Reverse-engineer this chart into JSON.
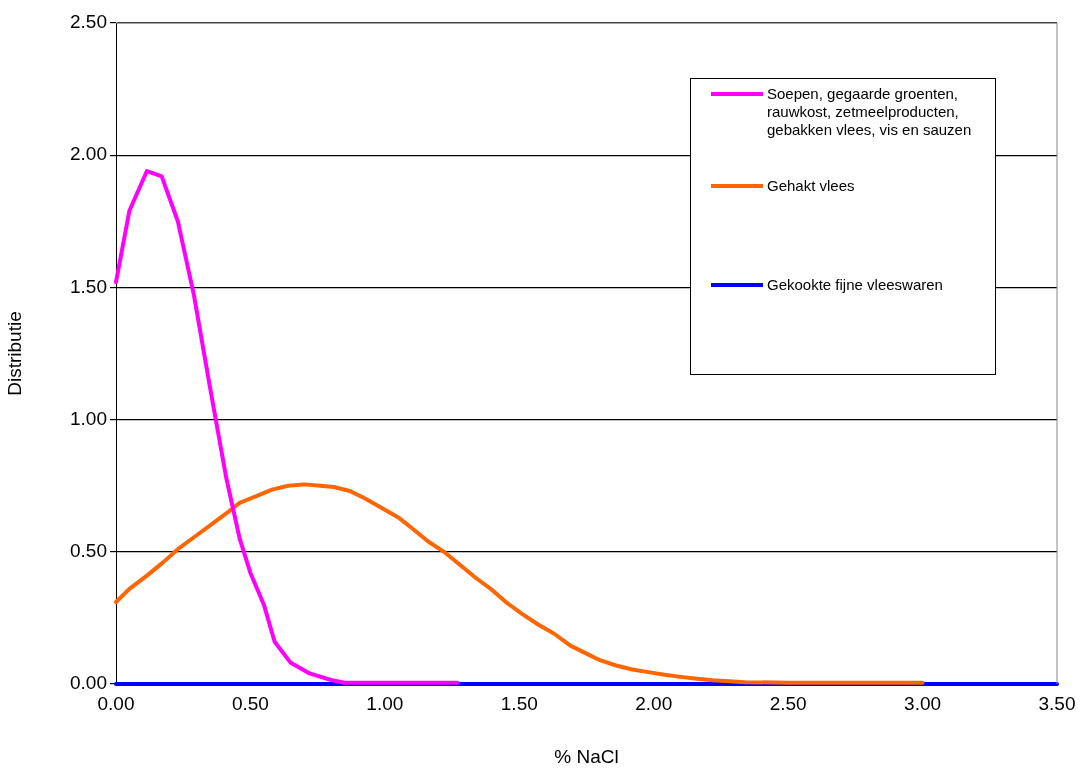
{
  "chart_data": {
    "type": "line",
    "xlabel": "% NaCl",
    "ylabel": "Distributie",
    "xlim": [
      0,
      3.5
    ],
    "ylim": [
      0,
      2.5
    ],
    "xticks": [
      {
        "value": 0,
        "label": "0.00"
      },
      {
        "value": 0.5,
        "label": "0.50"
      },
      {
        "value": 1,
        "label": "1.00"
      },
      {
        "value": 1.5,
        "label": "1.50"
      },
      {
        "value": 2,
        "label": "2.00"
      },
      {
        "value": 2.5,
        "label": "2.50"
      },
      {
        "value": 3,
        "label": "3.00"
      },
      {
        "value": 3.5,
        "label": "3.50"
      }
    ],
    "yticks": [
      {
        "value": 0,
        "label": "0.00"
      },
      {
        "value": 0.5,
        "label": "0.50"
      },
      {
        "value": 1,
        "label": "1.00"
      },
      {
        "value": 1.5,
        "label": "1.50"
      },
      {
        "value": 2,
        "label": "2.00"
      },
      {
        "value": 2.5,
        "label": "2.50"
      }
    ],
    "grid": "y",
    "legend": "top right",
    "marker": "none",
    "line_style": "solid",
    "series": [
      {
        "name": "Soepen, gegaarde groenten, rauwkost, zetmeelproducten, gebakken vlees, vis en sauzen",
        "color": "#ff00ff",
        "x": [
          0,
          0.05,
          0.115,
          0.17,
          0.23,
          0.29,
          0.35,
          0.41,
          0.46,
          0.5,
          0.55,
          0.59,
          0.65,
          0.72,
          0.8,
          0.85,
          1.27
        ],
        "values": [
          1.52,
          1.79,
          1.94,
          1.92,
          1.75,
          1.47,
          1.12,
          0.78,
          0.55,
          0.42,
          0.3,
          0.16,
          0.08,
          0.04,
          0.015,
          0.005,
          0.005
        ]
      },
      {
        "name": "Gehakt vlees",
        "color": "#ff6600",
        "x": [
          0,
          0.05,
          0.115,
          0.175,
          0.23,
          0.29,
          0.35,
          0.41,
          0.46,
          0.52,
          0.58,
          0.64,
          0.7,
          0.76,
          0.81,
          0.87,
          0.93,
          0.99,
          1.05,
          1.1,
          1.16,
          1.22,
          1.28,
          1.34,
          1.4,
          1.45,
          1.51,
          1.57,
          1.63,
          1.69,
          1.75,
          1.8,
          1.86,
          1.92,
          1.98,
          2.04,
          2.1,
          2.16,
          2.22,
          2.28,
          2.34,
          2.5,
          3.0
        ],
        "values": [
          0.31,
          0.36,
          0.41,
          0.46,
          0.51,
          0.555,
          0.6,
          0.645,
          0.685,
          0.71,
          0.735,
          0.75,
          0.755,
          0.75,
          0.745,
          0.73,
          0.7,
          0.665,
          0.63,
          0.59,
          0.54,
          0.5,
          0.45,
          0.4,
          0.355,
          0.31,
          0.265,
          0.225,
          0.19,
          0.145,
          0.115,
          0.09,
          0.07,
          0.055,
          0.045,
          0.035,
          0.027,
          0.02,
          0.014,
          0.01,
          0.007,
          0.005,
          0.005
        ]
      },
      {
        "name": "Gekookte fijne vleeswaren",
        "color": "#0000ff",
        "x": [
          0,
          3.5
        ],
        "values": [
          0,
          0
        ]
      }
    ]
  }
}
